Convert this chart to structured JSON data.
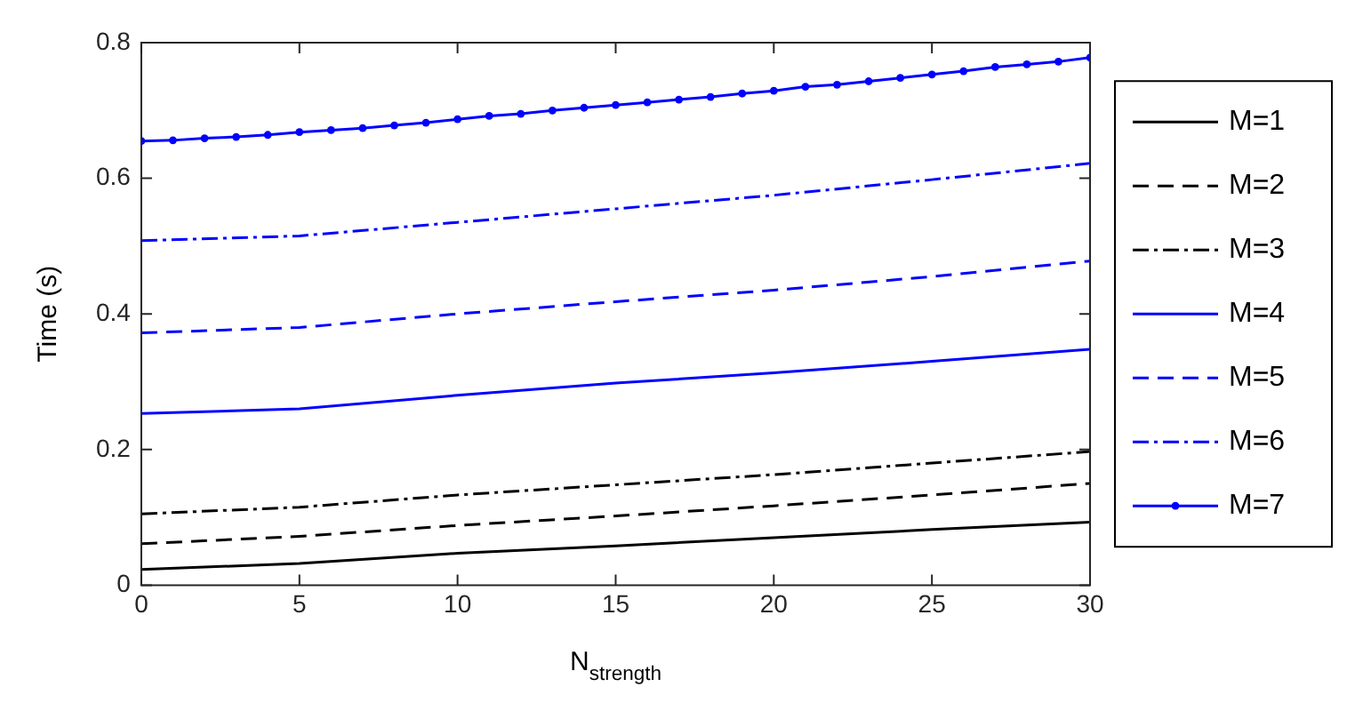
{
  "chart_data": {
    "type": "line",
    "xlabel": "N$_{strength}$",
    "ylabel": "Time (s)",
    "x": [
      0,
      5,
      10,
      15,
      20,
      25,
      30
    ],
    "xlim": [
      0,
      30
    ],
    "xticks": [
      0,
      5,
      10,
      15,
      20,
      25,
      30
    ],
    "ylim": [
      0,
      0.8
    ],
    "yticks": [
      0,
      0.2,
      0.4,
      0.6,
      0.8
    ],
    "grid": false,
    "legend": "right",
    "series": [
      {
        "name": "M=1",
        "color": "#000000",
        "line_style": "solid",
        "marker": "none",
        "values": [
          0.023,
          0.032,
          0.047,
          0.058,
          0.07,
          0.082,
          0.093
        ]
      },
      {
        "name": "M=2",
        "color": "#000000",
        "line_style": "dashed",
        "marker": "none",
        "values": [
          0.061,
          0.072,
          0.088,
          0.102,
          0.117,
          0.133,
          0.15
        ]
      },
      {
        "name": "M=3",
        "color": "#000000",
        "line_style": "dashdot",
        "marker": "none",
        "values": [
          0.105,
          0.115,
          0.133,
          0.148,
          0.163,
          0.18,
          0.197
        ]
      },
      {
        "name": "M=4",
        "color": "#0000ff",
        "line_style": "solid",
        "marker": "none",
        "values": [
          0.253,
          0.26,
          0.28,
          0.298,
          0.313,
          0.33,
          0.348
        ]
      },
      {
        "name": "M=5",
        "color": "#0000ff",
        "line_style": "dashed",
        "marker": "none",
        "values": [
          0.372,
          0.38,
          0.4,
          0.418,
          0.435,
          0.455,
          0.478
        ]
      },
      {
        "name": "M=6",
        "color": "#0000ff",
        "line_style": "dashdot",
        "marker": "none",
        "values": [
          0.508,
          0.515,
          0.535,
          0.555,
          0.575,
          0.598,
          0.622
        ]
      },
      {
        "name": "M=7",
        "color": "#0000ff",
        "line_style": "solid",
        "marker": "circle",
        "x": [
          0,
          1,
          2,
          3,
          4,
          5,
          6,
          7,
          8,
          9,
          10,
          11,
          12,
          13,
          14,
          15,
          16,
          17,
          18,
          19,
          20,
          21,
          22,
          23,
          24,
          25,
          26,
          27,
          28,
          29,
          30
        ],
        "values": [
          0.655,
          0.656,
          0.659,
          0.661,
          0.664,
          0.668,
          0.671,
          0.674,
          0.678,
          0.682,
          0.687,
          0.692,
          0.695,
          0.7,
          0.704,
          0.708,
          0.712,
          0.716,
          0.72,
          0.725,
          0.729,
          0.735,
          0.738,
          0.743,
          0.748,
          0.753,
          0.758,
          0.764,
          0.768,
          0.772,
          0.778
        ]
      }
    ]
  }
}
